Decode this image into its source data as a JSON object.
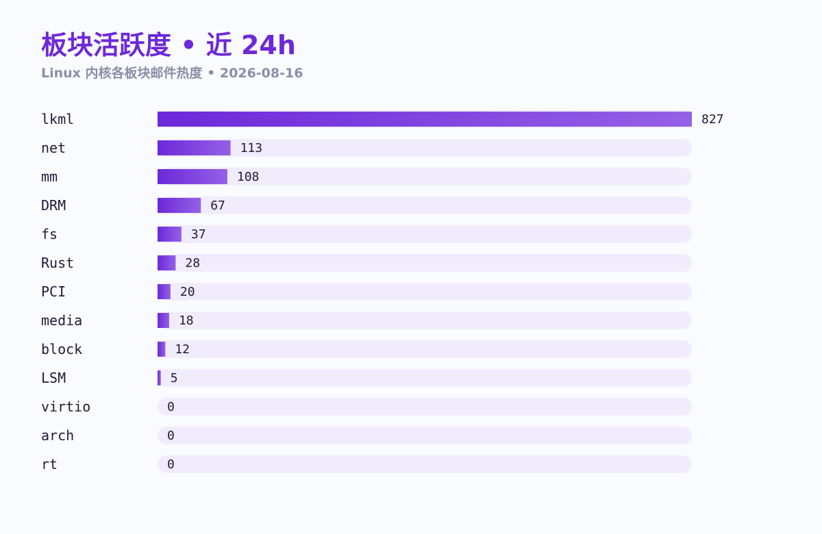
{
  "header": {
    "title": "板块活跃度 • 近 24h",
    "subtitle": "Linux 内核各板块邮件热度 • 2026-08-16"
  },
  "colors": {
    "title": "#6d28d9",
    "subtitle": "#8a8fa8",
    "bar_start": "#6d28d9",
    "bar_end": "#9461e6",
    "track": "#f1ecfb",
    "text": "#1e1b3a"
  },
  "chart_data": {
    "type": "bar",
    "orientation": "horizontal",
    "title": "板块活跃度 • 近 24h",
    "subtitle": "Linux 内核各板块邮件热度 • 2026-08-16",
    "categories": [
      "lkml",
      "net",
      "mm",
      "DRM",
      "fs",
      "Rust",
      "PCI",
      "media",
      "block",
      "LSM",
      "virtio",
      "arch",
      "rt"
    ],
    "values": [
      827,
      113,
      108,
      67,
      37,
      28,
      20,
      18,
      12,
      5,
      0,
      0,
      0
    ],
    "xlim": [
      0,
      827
    ],
    "grid": false,
    "legend": "none",
    "data_labels": true
  }
}
